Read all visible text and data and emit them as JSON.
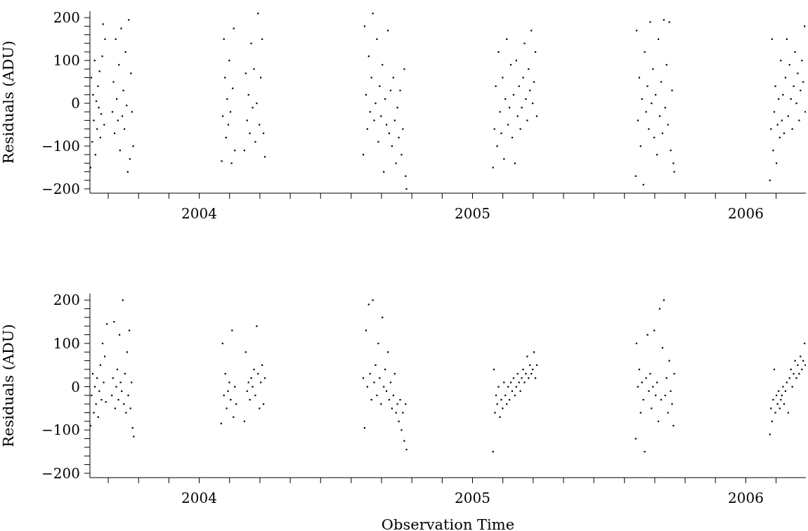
{
  "chart_data": [
    {
      "type": "scatter",
      "ylabel": "Residuals (ADU)",
      "color": "#000000",
      "marker": "square",
      "xlim": [
        2003.6,
        2006.22
      ],
      "ylim": [
        -210,
        215
      ],
      "xticks": [
        {
          "value": 2003.667,
          "label": null
        },
        {
          "value": 2003.778,
          "label": null
        },
        {
          "value": 2003.889,
          "label": null
        },
        2004,
        {
          "value": 2004.111,
          "label": null
        },
        {
          "value": 2004.222,
          "label": null
        },
        {
          "value": 2004.333,
          "label": null
        },
        {
          "value": 2004.444,
          "label": null
        },
        {
          "value": 2004.556,
          "label": null
        },
        {
          "value": 2004.667,
          "label": null
        },
        {
          "value": 2004.778,
          "label": null
        },
        {
          "value": 2004.889,
          "label": null
        },
        2005,
        {
          "value": 2005.111,
          "label": null
        },
        {
          "value": 2005.222,
          "label": null
        },
        {
          "value": 2005.333,
          "label": null
        },
        {
          "value": 2005.444,
          "label": null
        },
        {
          "value": 2005.556,
          "label": null
        },
        {
          "value": 2005.667,
          "label": null
        },
        {
          "value": 2005.778,
          "label": null
        },
        {
          "value": 2005.889,
          "label": null
        },
        2006,
        {
          "value": 2006.111,
          "label": null
        }
      ],
      "yticks": [
        {
          "value": -200,
          "label": "−200"
        },
        {
          "value": -180,
          "label": null
        },
        {
          "value": -160,
          "label": null
        },
        {
          "value": -140,
          "label": null
        },
        {
          "value": -120,
          "label": null
        },
        {
          "value": -100,
          "label": "−100"
        },
        {
          "value": -80,
          "label": null
        },
        {
          "value": -60,
          "label": null
        },
        {
          "value": -40,
          "label": null
        },
        {
          "value": -20,
          "label": null
        },
        0,
        {
          "value": 20,
          "label": null
        },
        {
          "value": 40,
          "label": null
        },
        {
          "value": 60,
          "label": null
        },
        {
          "value": 80,
          "label": null
        },
        100,
        {
          "value": 120,
          "label": null
        },
        {
          "value": 140,
          "label": null
        },
        {
          "value": 160,
          "label": null
        },
        {
          "value": 180,
          "label": null
        },
        200
      ],
      "x": [
        2003.602,
        2003.605,
        2003.608,
        2003.611,
        2003.614,
        2003.617,
        2003.62,
        2003.623,
        2003.626,
        2003.629,
        2003.632,
        2003.635,
        2003.638,
        2003.641,
        2003.645,
        2003.648,
        2003.652,
        2003.655,
        2003.682,
        2003.686,
        2003.69,
        2003.694,
        2003.698,
        2003.702,
        2003.706,
        2003.71,
        2003.714,
        2003.718,
        2003.722,
        2003.726,
        2003.73,
        2003.734,
        2003.738,
        2003.742,
        2003.746,
        2003.75,
        2003.754,
        2003.758,
        2004.082,
        2004.086,
        2004.09,
        2004.094,
        2004.098,
        2004.102,
        2004.106,
        2004.11,
        2004.114,
        2004.118,
        2004.122,
        2004.126,
        2004.13,
        2004.165,
        2004.17,
        2004.175,
        2004.18,
        2004.185,
        2004.19,
        2004.195,
        2004.2,
        2004.205,
        2004.21,
        2004.215,
        2004.22,
        2004.225,
        2004.23,
        2004.235,
        2004.24,
        2004.6,
        2004.605,
        2004.61,
        2004.615,
        2004.62,
        2004.625,
        2004.63,
        2004.635,
        2004.64,
        2004.645,
        2004.65,
        2004.655,
        2004.66,
        2004.665,
        2004.67,
        2004.675,
        2004.68,
        2004.685,
        2004.69,
        2004.695,
        2004.7,
        2004.705,
        2004.71,
        2004.715,
        2004.72,
        2004.725,
        2004.73,
        2004.735,
        2004.74,
        2004.745,
        2004.75,
        2004.755,
        2004.758,
        2005.075,
        2005.08,
        2005.085,
        2005.09,
        2005.095,
        2005.1,
        2005.105,
        2005.11,
        2005.115,
        2005.12,
        2005.125,
        2005.13,
        2005.135,
        2005.14,
        2005.145,
        2005.15,
        2005.155,
        2005.16,
        2005.165,
        2005.17,
        2005.175,
        2005.18,
        2005.185,
        2005.19,
        2005.195,
        2005.2,
        2005.205,
        2005.21,
        2005.215,
        2005.22,
        2005.225,
        2005.23,
        2005.235,
        2005.597,
        2005.6,
        2005.605,
        2005.61,
        2005.615,
        2005.62,
        2005.625,
        2005.63,
        2005.635,
        2005.64,
        2005.645,
        2005.65,
        2005.655,
        2005.66,
        2005.665,
        2005.67,
        2005.675,
        2005.68,
        2005.685,
        2005.69,
        2005.695,
        2005.7,
        2005.705,
        2005.71,
        2005.715,
        2005.72,
        2005.725,
        2005.73,
        2005.735,
        2005.738,
        2006.088,
        2006.092,
        2006.096,
        2006.1,
        2006.104,
        2006.108,
        2006.112,
        2006.116,
        2006.12,
        2006.124,
        2006.128,
        2006.132,
        2006.136,
        2006.14,
        2006.145,
        2006.15,
        2006.155,
        2006.16,
        2006.165,
        2006.17,
        2006.175,
        2006.18,
        2006.185,
        2006.19,
        2006.195,
        2006.2,
        2006.205,
        2006.21,
        2006.215,
        2006.218
      ],
      "values": [
        -150,
        60,
        -90,
        20,
        -40,
        100,
        -120,
        5,
        -60,
        40,
        -10,
        75,
        -80,
        -25,
        110,
        185,
        -50,
        150,
        -20,
        50,
        -70,
        150,
        10,
        -40,
        90,
        -110,
        175,
        -30,
        30,
        -60,
        120,
        -5,
        -160,
        195,
        -130,
        70,
        -20,
        -100,
        -135,
        -30,
        150,
        60,
        -80,
        10,
        -50,
        100,
        -20,
        -140,
        35,
        175,
        -110,
        -110,
        70,
        -40,
        20,
        -70,
        140,
        -10,
        80,
        -90,
        0,
        210,
        -50,
        60,
        150,
        -70,
        -125,
        -120,
        180,
        20,
        -60,
        110,
        -20,
        60,
        210,
        -40,
        0,
        150,
        -90,
        40,
        -30,
        90,
        -160,
        10,
        -50,
        170,
        -70,
        30,
        -100,
        60,
        -40,
        -140,
        -10,
        -80,
        30,
        -120,
        -60,
        80,
        -170,
        -200,
        -150,
        -60,
        40,
        -100,
        120,
        -20,
        -70,
        60,
        -130,
        10,
        150,
        -50,
        -10,
        90,
        -80,
        20,
        -140,
        100,
        -30,
        40,
        -60,
        -10,
        60,
        140,
        10,
        -40,
        80,
        30,
        170,
        0,
        50,
        120,
        -30,
        -170,
        170,
        -40,
        60,
        -100,
        10,
        -190,
        120,
        -20,
        40,
        -60,
        190,
        0,
        80,
        -80,
        20,
        -120,
        150,
        -30,
        50,
        -70,
        195,
        -10,
        90,
        -50,
        190,
        -110,
        30,
        -140,
        -160,
        -180,
        -60,
        150,
        -110,
        -20,
        40,
        -140,
        -50,
        10,
        -80,
        100,
        -40,
        20,
        -70,
        60,
        150,
        -30,
        90,
        10,
        -60,
        40,
        120,
        0,
        70,
        -40,
        30,
        100,
        50,
        180,
        -20
      ]
    },
    {
      "type": "scatter",
      "ylabel": "Residuals (ADU)",
      "xlabel": "Observation Time",
      "color": "#000000",
      "marker": "square",
      "xlim": [
        2003.6,
        2006.22
      ],
      "ylim": [
        -210,
        215
      ],
      "xticks": [
        {
          "value": 2003.667,
          "label": null
        },
        {
          "value": 2003.778,
          "label": null
        },
        {
          "value": 2003.889,
          "label": null
        },
        2004,
        {
          "value": 2004.111,
          "label": null
        },
        {
          "value": 2004.222,
          "label": null
        },
        {
          "value": 2004.333,
          "label": null
        },
        {
          "value": 2004.444,
          "label": null
        },
        {
          "value": 2004.556,
          "label": null
        },
        {
          "value": 2004.667,
          "label": null
        },
        {
          "value": 2004.778,
          "label": null
        },
        {
          "value": 2004.889,
          "label": null
        },
        2005,
        {
          "value": 2005.111,
          "label": null
        },
        {
          "value": 2005.222,
          "label": null
        },
        {
          "value": 2005.333,
          "label": null
        },
        {
          "value": 2005.444,
          "label": null
        },
        {
          "value": 2005.556,
          "label": null
        },
        {
          "value": 2005.667,
          "label": null
        },
        {
          "value": 2005.778,
          "label": null
        },
        {
          "value": 2005.889,
          "label": null
        },
        2006,
        {
          "value": 2006.111,
          "label": null
        }
      ],
      "yticks": [
        {
          "value": -200,
          "label": "−200"
        },
        {
          "value": -180,
          "label": null
        },
        {
          "value": -160,
          "label": null
        },
        {
          "value": -140,
          "label": null
        },
        {
          "value": -120,
          "label": null
        },
        {
          "value": -100,
          "label": "−100"
        },
        {
          "value": -80,
          "label": null
        },
        {
          "value": -60,
          "label": null
        },
        {
          "value": -40,
          "label": null
        },
        {
          "value": -20,
          "label": null
        },
        0,
        {
          "value": 20,
          "label": null
        },
        {
          "value": 40,
          "label": null
        },
        {
          "value": 60,
          "label": null
        },
        {
          "value": 80,
          "label": null
        },
        100,
        {
          "value": 120,
          "label": null
        },
        {
          "value": 140,
          "label": null
        },
        {
          "value": 160,
          "label": null
        },
        {
          "value": 180,
          "label": null
        },
        200
      ],
      "x": [
        2003.602,
        2003.606,
        2003.61,
        2003.614,
        2003.618,
        2003.622,
        2003.626,
        2003.63,
        2003.634,
        2003.638,
        2003.642,
        2003.646,
        2003.65,
        2003.654,
        2003.658,
        2003.662,
        2003.68,
        2003.684,
        2003.688,
        2003.692,
        2003.696,
        2003.7,
        2003.704,
        2003.708,
        2003.712,
        2003.716,
        2003.72,
        2003.724,
        2003.728,
        2003.732,
        2003.736,
        2003.74,
        2003.744,
        2003.748,
        2003.752,
        2003.756,
        2003.76,
        2004.08,
        2004.085,
        2004.09,
        2004.095,
        2004.1,
        2004.105,
        2004.11,
        2004.115,
        2004.12,
        2004.125,
        2004.13,
        2004.135,
        2004.165,
        2004.17,
        2004.175,
        2004.18,
        2004.185,
        2004.19,
        2004.195,
        2004.2,
        2004.205,
        2004.21,
        2004.215,
        2004.22,
        2004.225,
        2004.23,
        2004.235,
        2004.24,
        2004.6,
        2004.605,
        2004.61,
        2004.615,
        2004.62,
        2004.625,
        2004.63,
        2004.635,
        2004.64,
        2004.645,
        2004.65,
        2004.655,
        2004.66,
        2004.665,
        2004.67,
        2004.675,
        2004.68,
        2004.685,
        2004.69,
        2004.695,
        2004.7,
        2004.705,
        2004.71,
        2004.715,
        2004.72,
        2004.725,
        2004.73,
        2004.735,
        2004.74,
        2004.745,
        2004.75,
        2004.755,
        2004.758,
        2005.075,
        2005.078,
        2005.082,
        2005.086,
        2005.09,
        2005.095,
        2005.1,
        2005.105,
        2005.11,
        2005.115,
        2005.12,
        2005.125,
        2005.13,
        2005.135,
        2005.14,
        2005.145,
        2005.15,
        2005.155,
        2005.16,
        2005.165,
        2005.17,
        2005.175,
        2005.18,
        2005.185,
        2005.19,
        2005.195,
        2005.2,
        2005.205,
        2005.21,
        2005.215,
        2005.22,
        2005.225,
        2005.23,
        2005.235,
        2005.597,
        2005.6,
        2005.605,
        2005.61,
        2005.615,
        2005.62,
        2005.625,
        2005.63,
        2005.635,
        2005.64,
        2005.645,
        2005.65,
        2005.655,
        2005.66,
        2005.665,
        2005.67,
        2005.675,
        2005.68,
        2005.685,
        2005.69,
        2005.695,
        2005.7,
        2005.705,
        2005.71,
        2005.715,
        2005.72,
        2005.725,
        2005.73,
        2005.735,
        2005.738,
        2006.088,
        2006.092,
        2006.096,
        2006.1,
        2006.104,
        2006.108,
        2006.112,
        2006.116,
        2006.12,
        2006.124,
        2006.128,
        2006.132,
        2006.136,
        2006.14,
        2006.145,
        2006.15,
        2006.155,
        2006.16,
        2006.165,
        2006.17,
        2006.175,
        2006.18,
        2006.185,
        2006.19,
        2006.195,
        2006.2,
        2006.205,
        2006.21,
        2006.215,
        2006.218
      ],
      "values": [
        -90,
        -20,
        30,
        -60,
        0,
        -40,
        20,
        -70,
        -10,
        50,
        -30,
        100,
        10,
        70,
        -35,
        145,
        -20,
        20,
        150,
        -50,
        0,
        40,
        -30,
        120,
        10,
        -10,
        200,
        -40,
        30,
        -60,
        80,
        -20,
        130,
        -50,
        10,
        -95,
        -115,
        -85,
        100,
        -20,
        30,
        -50,
        -10,
        10,
        -30,
        130,
        -70,
        0,
        -40,
        -80,
        80,
        -10,
        10,
        -30,
        20,
        0,
        40,
        -20,
        140,
        30,
        -50,
        10,
        50,
        -40,
        20,
        20,
        -95,
        130,
        0,
        190,
        30,
        -30,
        200,
        10,
        50,
        -20,
        100,
        20,
        -40,
        160,
        0,
        40,
        -10,
        80,
        -30,
        10,
        -50,
        -20,
        30,
        -60,
        -40,
        -80,
        -30,
        -100,
        -60,
        -125,
        -40,
        -145,
        -150,
        40,
        -60,
        -20,
        -40,
        0,
        -70,
        -30,
        -50,
        10,
        -20,
        -40,
        0,
        -30,
        10,
        -10,
        20,
        -20,
        0,
        30,
        10,
        -10,
        20,
        40,
        10,
        30,
        70,
        20,
        50,
        30,
        40,
        80,
        20,
        50,
        -120,
        100,
        0,
        40,
        -60,
        10,
        -30,
        -150,
        20,
        120,
        -10,
        30,
        -50,
        0,
        130,
        -20,
        10,
        -80,
        180,
        -30,
        90,
        200,
        -20,
        20,
        -60,
        60,
        -10,
        -40,
        -90,
        30,
        -110,
        -50,
        -80,
        -30,
        40,
        -60,
        -20,
        -40,
        -10,
        -50,
        -30,
        -20,
        0,
        -40,
        -10,
        10,
        -60,
        20,
        40,
        0,
        30,
        60,
        20,
        50,
        30,
        70,
        40,
        60,
        100,
        50
      ]
    }
  ]
}
